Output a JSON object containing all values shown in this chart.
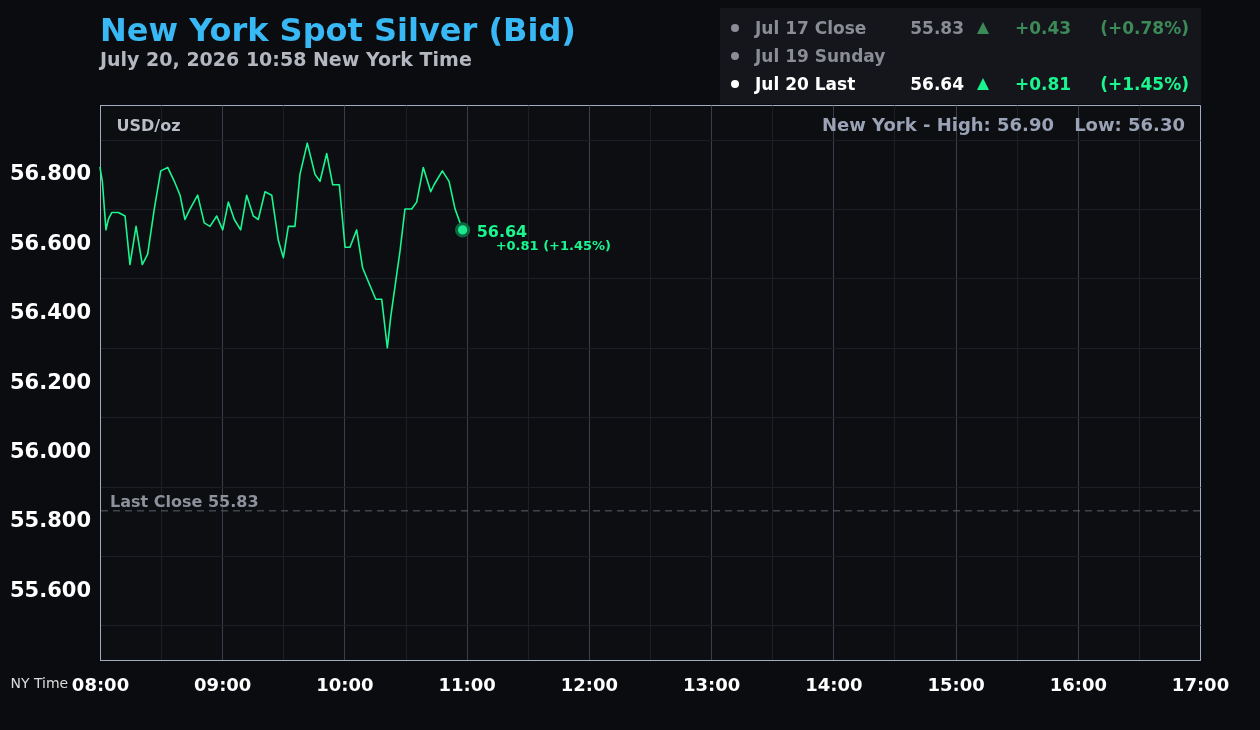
{
  "chart_data": {
    "type": "line",
    "title": "New York Spot Silver (Bid)",
    "subtitle": "July 20, 2026 10:58 New York Time",
    "xlabel": "NY Time",
    "ylabel": "USD/oz",
    "series": [
      {
        "color": "#19f58f",
        "x": [
          8.0,
          8.019,
          8.049,
          8.068,
          8.096,
          8.15,
          8.205,
          8.245,
          8.295,
          8.346,
          8.39,
          8.444,
          8.497,
          8.554,
          8.608,
          8.655,
          8.695,
          8.736,
          8.799,
          8.853,
          8.9,
          8.955,
          9.004,
          9.05,
          9.099,
          9.151,
          9.2,
          9.254,
          9.295,
          9.35,
          9.405,
          9.459,
          9.5,
          9.541,
          9.595,
          9.636,
          9.696,
          9.759,
          9.8,
          9.855,
          9.904,
          9.958,
          10.005,
          10.045,
          10.1,
          10.149,
          10.256,
          10.305,
          10.351,
          10.379,
          10.455,
          10.495,
          10.55,
          10.591,
          10.645,
          10.706,
          10.733,
          10.801,
          10.856,
          10.905,
          10.967
        ],
        "values": [
          56.82,
          56.78,
          56.64,
          56.67,
          56.69,
          56.69,
          56.68,
          56.54,
          56.65,
          56.54,
          56.57,
          56.7,
          56.81,
          56.82,
          56.78,
          56.74,
          56.67,
          56.7,
          56.74,
          56.66,
          56.65,
          56.68,
          56.64,
          56.72,
          56.67,
          56.64,
          56.74,
          56.68,
          56.67,
          56.75,
          56.74,
          56.61,
          56.56,
          56.65,
          56.65,
          56.8,
          56.89,
          56.8,
          56.78,
          56.86,
          56.77,
          56.77,
          56.59,
          56.59,
          56.64,
          56.53,
          56.44,
          56.44,
          56.3,
          56.39,
          56.58,
          56.7,
          56.7,
          56.72,
          56.82,
          56.75,
          56.77,
          56.81,
          56.78,
          56.7,
          56.64
        ]
      },
      {
        "type": "scatter",
        "marker": "circle",
        "color": "#1de88f",
        "x": [
          10.967
        ],
        "values": [
          56.64
        ]
      }
    ],
    "xlim": [
      8,
      17
    ],
    "xticks": [
      {
        "value": 8,
        "label": "08:00"
      },
      {
        "value": 8.5,
        "label": null
      },
      {
        "value": 9,
        "label": "09:00"
      },
      {
        "value": 9.5,
        "label": null
      },
      {
        "value": 10,
        "label": "10:00"
      },
      {
        "value": 10.5,
        "label": null
      },
      {
        "value": 11,
        "label": "11:00"
      },
      {
        "value": 11.5,
        "label": null
      },
      {
        "value": 12,
        "label": "12:00"
      },
      {
        "value": 12.5,
        "label": null
      },
      {
        "value": 13,
        "label": "13:00"
      },
      {
        "value": 13.5,
        "label": null
      },
      {
        "value": 14,
        "label": "14:00"
      },
      {
        "value": 14.5,
        "label": null
      },
      {
        "value": 15,
        "label": "15:00"
      },
      {
        "value": 15.5,
        "label": null
      },
      {
        "value": 16,
        "label": "16:00"
      },
      {
        "value": 16.5,
        "label": null
      },
      {
        "value": 17,
        "label": "17:00"
      }
    ],
    "ylim": [
      55.4,
      57.0
    ],
    "yticks": [
      {
        "value": 55.5,
        "label": null
      },
      {
        "value": 55.6,
        "label": "55.600"
      },
      {
        "value": 55.7,
        "label": null
      },
      {
        "value": 55.8,
        "label": "55.800"
      },
      {
        "value": 55.9,
        "label": null
      },
      {
        "value": 56.0,
        "label": "56.000"
      },
      {
        "value": 56.1,
        "label": null
      },
      {
        "value": 56.2,
        "label": "56.200"
      },
      {
        "value": 56.3,
        "label": null
      },
      {
        "value": 56.4,
        "label": "56.400"
      },
      {
        "value": 56.5,
        "label": null
      },
      {
        "value": 56.6,
        "label": "56.600"
      },
      {
        "value": 56.7,
        "label": null
      },
      {
        "value": 56.8,
        "label": "56.800"
      },
      {
        "value": 56.9,
        "label": null
      }
    ],
    "grid": true,
    "ref_lines": [
      {
        "axis": "y",
        "value": 55.83,
        "label": "Last Close 55.83",
        "color": "#5d606b",
        "line_style": "dashed"
      }
    ],
    "annotations": [
      "Jul 17 Close",
      "55.83",
      "+0.43",
      "(+0.78%)",
      "Jul 19 Sunday",
      "Jul 20 Last",
      "56.64",
      "+0.81",
      "(+1.45%)",
      "New York - High: 56.90",
      "Low: 56.30",
      {
        "text": "56.64",
        "x": 10.967,
        "y": 56.64
      },
      {
        "text": "+0.81 (+1.45%)",
        "x": 10.967,
        "y": 56.64
      }
    ]
  }
}
